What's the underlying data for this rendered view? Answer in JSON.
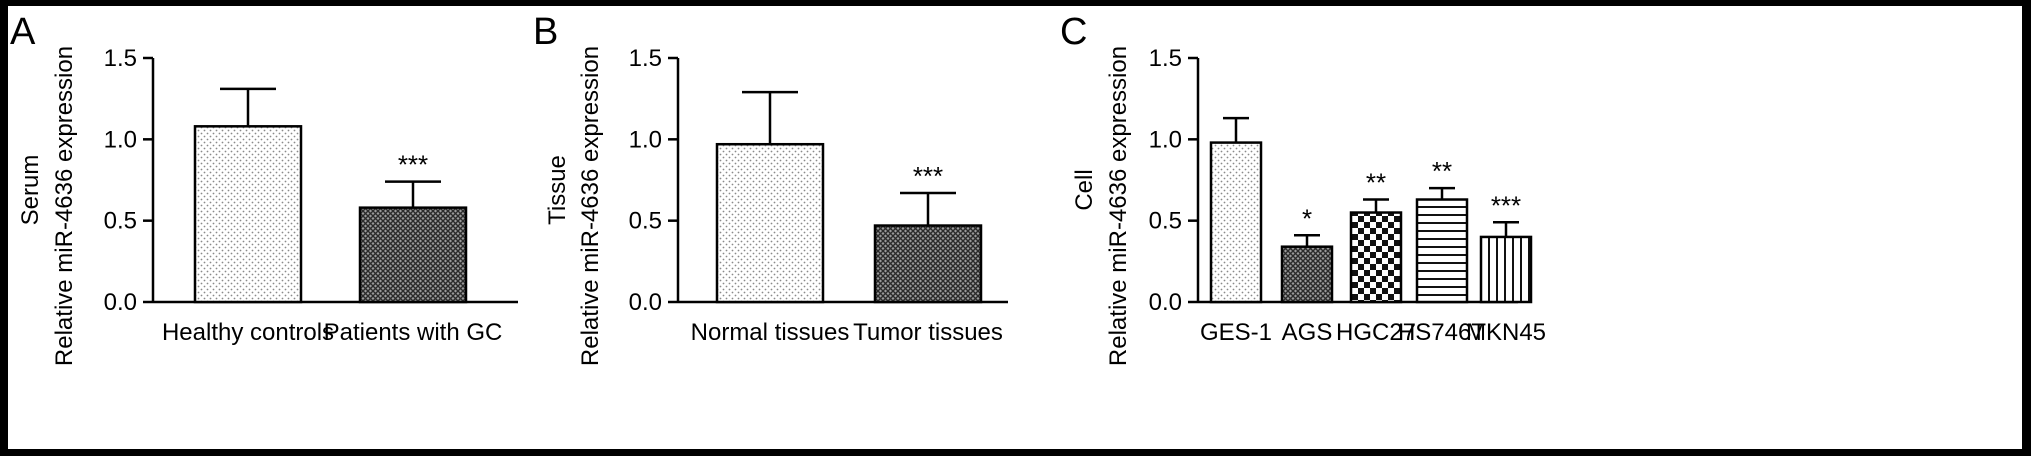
{
  "chart_data": [
    {
      "type": "bar",
      "panel_label": "A",
      "ylabel_line1": "Serum",
      "ylabel_line2": "Relative miR-4636 expression",
      "categories": [
        "Healthy controls",
        "Patients with GC"
      ],
      "values": [
        1.08,
        0.58
      ],
      "errors": [
        0.23,
        0.16
      ],
      "significance": [
        "",
        "***"
      ],
      "patterns": [
        "dots",
        "crosshatch"
      ],
      "ylim": [
        0,
        1.5
      ],
      "yticks": [
        "0.0",
        "0.5",
        "1.0",
        "1.5"
      ]
    },
    {
      "type": "bar",
      "panel_label": "B",
      "ylabel_line1": "Tissue",
      "ylabel_line2": "Relative miR-4636 expression",
      "categories": [
        "Normal tissues",
        "Tumor tissues"
      ],
      "values": [
        0.97,
        0.47
      ],
      "errors": [
        0.32,
        0.2
      ],
      "significance": [
        "",
        "***"
      ],
      "patterns": [
        "dots",
        "crosshatch"
      ],
      "ylim": [
        0,
        1.5
      ],
      "yticks": [
        "0.0",
        "0.5",
        "1.0",
        "1.5"
      ]
    },
    {
      "type": "bar",
      "panel_label": "C",
      "ylabel_line1": "Cell",
      "ylabel_line2": "Relative miR-4636 expression",
      "categories": [
        "GES-1",
        "AGS",
        "HGC27",
        "HS746T",
        "MKN45"
      ],
      "values": [
        0.98,
        0.34,
        0.55,
        0.63,
        0.4
      ],
      "errors": [
        0.15,
        0.07,
        0.08,
        0.07,
        0.09
      ],
      "significance": [
        "",
        "*",
        "**",
        "**",
        "***"
      ],
      "patterns": [
        "dots",
        "crosshatch",
        "checker",
        "hstripes",
        "vstripes"
      ],
      "ylim": [
        0,
        1.5
      ],
      "yticks": [
        "0.0",
        "0.5",
        "1.0",
        "1.5"
      ]
    }
  ]
}
